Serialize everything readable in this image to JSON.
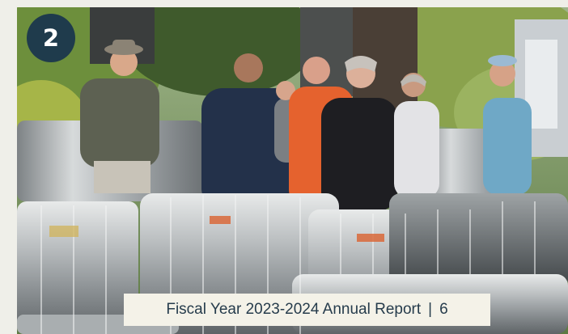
{
  "page_number_badge": "2",
  "caption": {
    "text": "Fiscal Year 2023-2024 Annual Report",
    "separator": "|",
    "page": "6"
  },
  "colors": {
    "badge_background": "#1f3b4c",
    "caption_background": "#f4f2e8",
    "caption_text": "#263c4c",
    "page_background": "#efefe9"
  },
  "photo": {
    "subject": "volunteers-standing-behind-galvanized-rain-barrels"
  }
}
